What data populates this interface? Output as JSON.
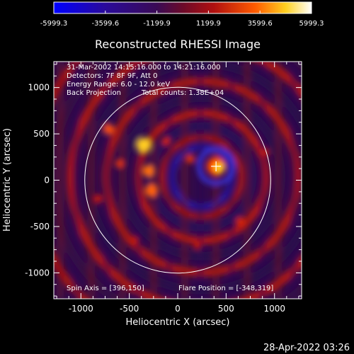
{
  "colorbar": {
    "tick_labels": [
      "-5999.3",
      "-3599.6",
      "-1199.9",
      "1199.9",
      "3599.6",
      "5999.3"
    ],
    "tick_values": [
      -5999.3,
      -3599.6,
      -1199.9,
      1199.9,
      3599.6,
      5999.3
    ],
    "min": -5999.3,
    "max": 5999.3
  },
  "plot": {
    "title": "Reconstructed RHESSI Image",
    "xlabel": "Heliocentric X (arcsec)",
    "ylabel": "Heliocentric Y (arcsec)",
    "xlim": [
      -1280,
      1280
    ],
    "ylim": [
      -1280,
      1280
    ],
    "xticks": [
      -1000,
      -500,
      0,
      500,
      1000
    ],
    "yticks": [
      -1000,
      -500,
      0,
      500,
      1000
    ],
    "xtick_labels": [
      "-1000",
      "-500",
      "0",
      "500",
      "1000"
    ],
    "ytick_labels": [
      "-1000",
      "-500",
      "0",
      "500",
      "1000"
    ],
    "solar_limb_radius": 960,
    "source_center": [
      396,
      150
    ]
  },
  "info_lines": [
    "31-Mar-2002 14:15:16.000 to 14:21:16.000",
    "Detectors: 7F 8F 9F, Att 0",
    "Energy Range: 6.0 - 12.0 keV",
    "Back Projection"
  ],
  "total_counts": "Total counts: 1.38E+04",
  "spin_axis": "Spin Axis = [396,150]",
  "flare_position": "Flare Position = [-348,319]",
  "timestamp": "28-Apr-2022 03:26"
}
